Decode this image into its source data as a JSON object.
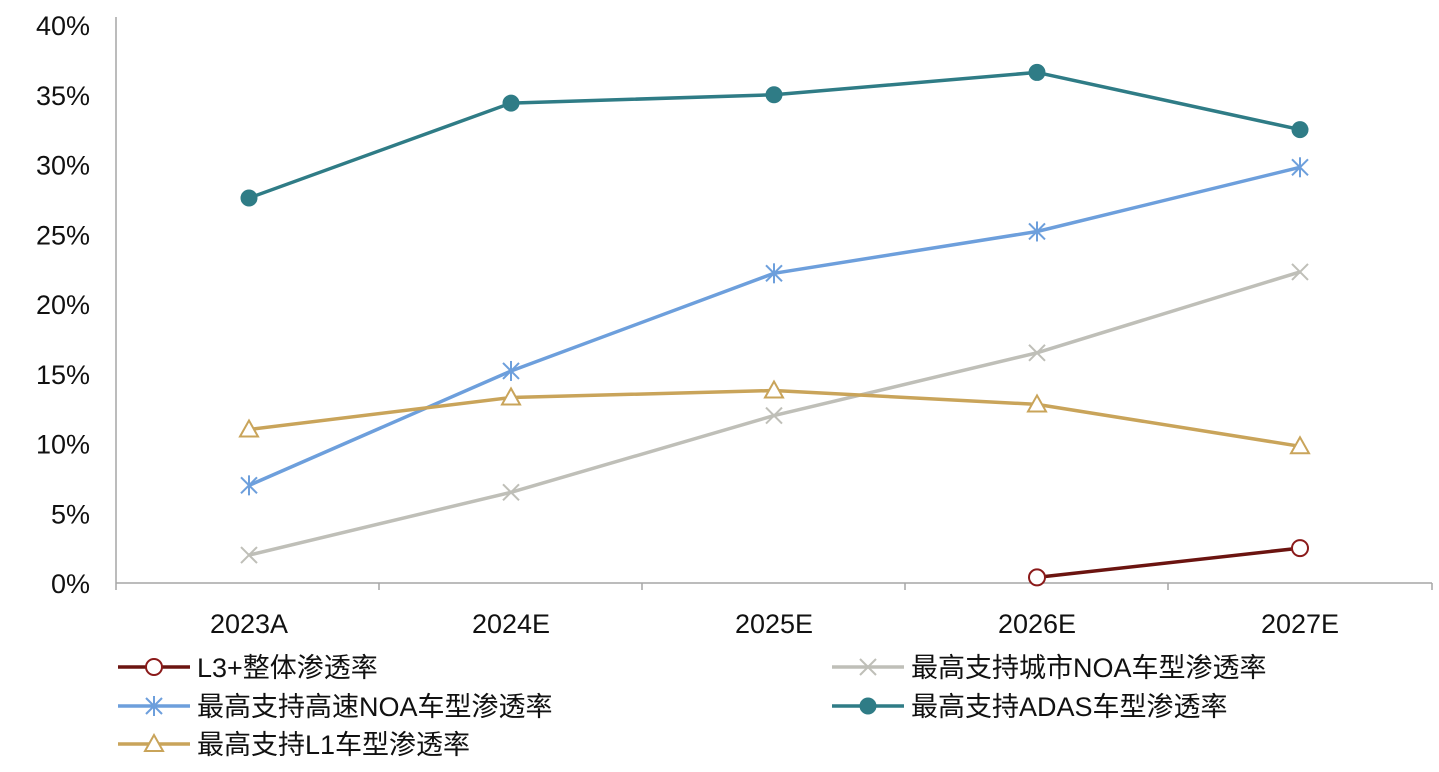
{
  "chart_data": {
    "type": "line",
    "categories": [
      "2023A",
      "2024E",
      "2025E",
      "2026E",
      "2027E"
    ],
    "y_ticks": [
      "0%",
      "5%",
      "10%",
      "15%",
      "20%",
      "25%",
      "30%",
      "35%",
      "40%"
    ],
    "ylim": [
      0,
      40
    ],
    "unit": "%",
    "grid": false,
    "legend_position": "bottom",
    "series": [
      {
        "name": "L3+整体渗透率",
        "values": [
          null,
          null,
          null,
          0.4,
          2.5
        ],
        "color": "#6b1410",
        "marker": "hollow-circle",
        "marker_color": "#8b1a1a"
      },
      {
        "name": "最高支持城市NOA车型渗透率",
        "values": [
          2.0,
          6.5,
          12.0,
          16.5,
          22.3
        ],
        "color": "#bfbfb8",
        "marker": "x"
      },
      {
        "name": "最高支持高速NOA车型渗透率",
        "values": [
          7.0,
          15.2,
          22.2,
          25.2,
          29.8
        ],
        "color": "#6d9fdc",
        "marker": "asterisk"
      },
      {
        "name": "最高支持ADAS车型渗透率",
        "values": [
          27.6,
          34.4,
          35.0,
          36.6,
          32.5
        ],
        "color": "#2f7c86",
        "marker": "filled-circle"
      },
      {
        "name": "最高支持L1车型渗透率",
        "values": [
          11.0,
          13.3,
          13.8,
          12.8,
          9.8
        ],
        "color": "#c9a45a",
        "marker": "hollow-triangle"
      }
    ],
    "legend_order": [
      0,
      1,
      2,
      3,
      4
    ]
  }
}
